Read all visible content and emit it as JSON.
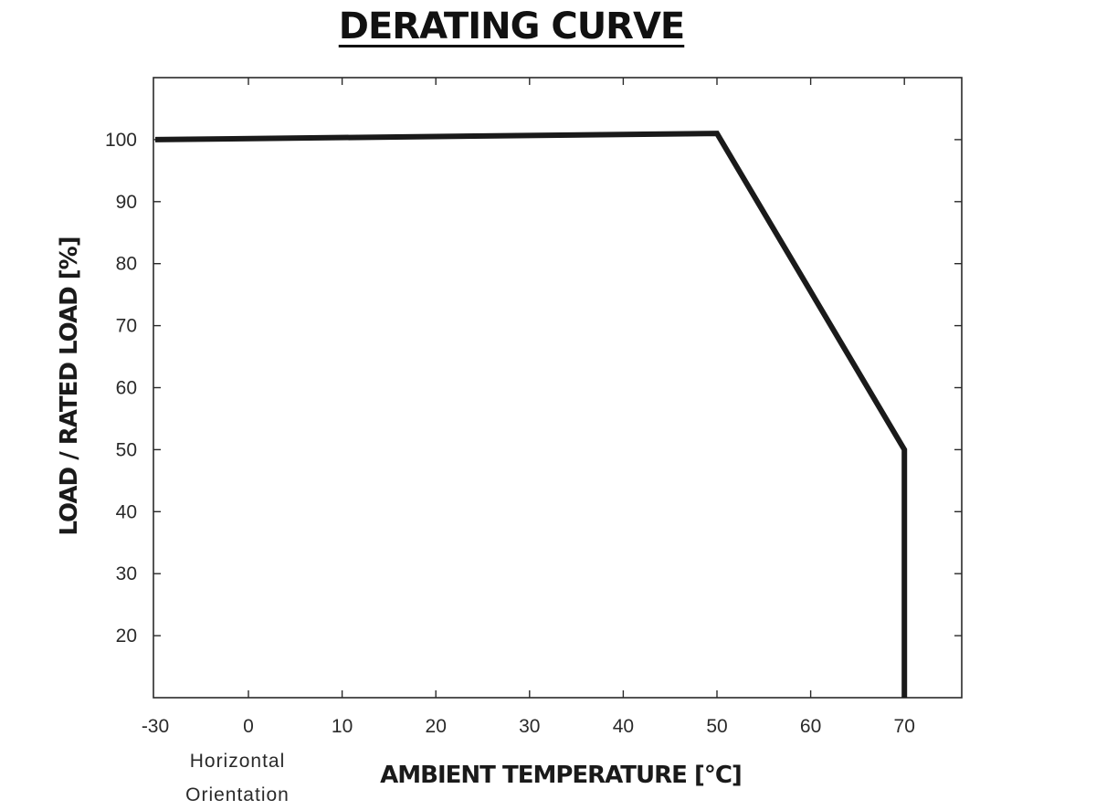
{
  "chart_data": {
    "type": "line",
    "title": "DERATING CURVE",
    "xlabel": "AMBIENT TEMPERATURE [°C]",
    "ylabel": "LOAD / RATED LOAD [%]",
    "x_ticks": [
      -30,
      0,
      10,
      20,
      30,
      40,
      50,
      60,
      70
    ],
    "y_ticks": [
      20,
      30,
      40,
      50,
      60,
      70,
      80,
      90,
      100
    ],
    "xlim": [
      -30,
      76
    ],
    "ylim": [
      10,
      110
    ],
    "grid": false,
    "annotation_lines": [
      "Horizontal",
      "Orientation"
    ],
    "series": [
      {
        "x": [
          -30,
          50,
          70,
          70
        ],
        "y": [
          100,
          101,
          50,
          10
        ]
      }
    ],
    "line_color": "#1a1a1a"
  }
}
